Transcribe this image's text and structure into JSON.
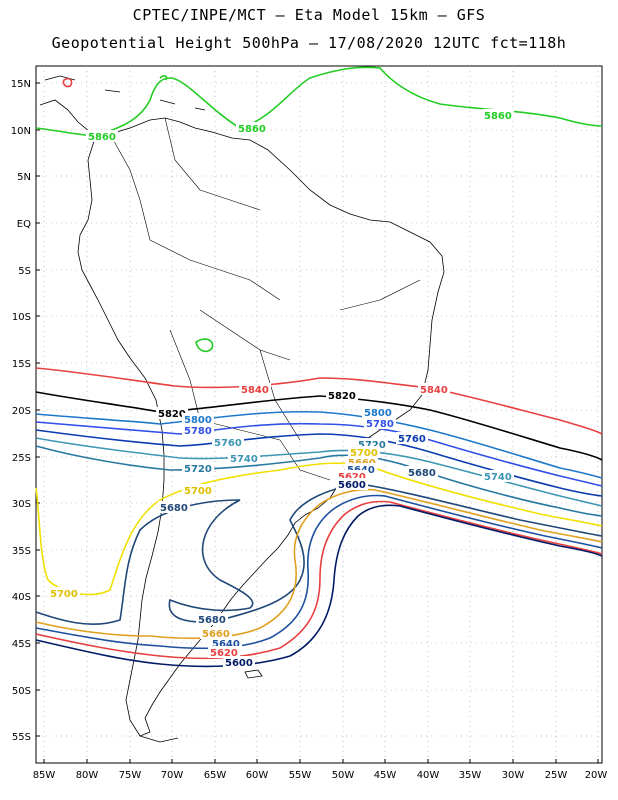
{
  "title": {
    "line1": "CPTEC/INPE/MCT –  Eta Model 15km – GFS",
    "line2": "Geopotential Height 500hPa – 17/08/2020 12UTC fct=118h"
  },
  "axes": {
    "lat_labels": [
      "15N",
      "10N",
      "5N",
      "EQ",
      "5S",
      "10S",
      "15S",
      "20S",
      "25S",
      "30S",
      "35S",
      "40S",
      "45S",
      "50S",
      "55S"
    ],
    "lon_labels": [
      "85W",
      "80W",
      "75W",
      "70W",
      "65W",
      "60W",
      "55W",
      "50W",
      "45W",
      "40W",
      "35W",
      "30W",
      "25W",
      "20W"
    ]
  },
  "colors": {
    "c5860": "#22cc22",
    "c5840": "#e84040",
    "c5820": "#000000",
    "c5800": "#1e78c8",
    "c5780": "#3050e8",
    "c5760": "#0a3cb0",
    "c5740": "#3c96b4",
    "c5720": "#2878a0",
    "c5700": "#f0e000",
    "c5680": "#204878",
    "c5660": "#e0a020",
    "c5640": "#1e50a0",
    "c5620": "#e84040",
    "c5600": "#001a66"
  },
  "contour_labels": [
    {
      "text": "5860",
      "color": "#22cc22"
    },
    {
      "text": "5860",
      "color": "#22cc22"
    },
    {
      "text": "5860",
      "color": "#22cc22"
    },
    {
      "text": "5840",
      "color": "#e84040"
    },
    {
      "text": "5840",
      "color": "#e84040"
    },
    {
      "text": "5820",
      "color": "#000000"
    },
    {
      "text": "5820",
      "color": "#000000"
    },
    {
      "text": "5800",
      "color": "#1e78c8"
    },
    {
      "text": "5800",
      "color": "#1e78c8"
    },
    {
      "text": "5780",
      "color": "#3050e8"
    },
    {
      "text": "5780",
      "color": "#3050e8"
    },
    {
      "text": "5760",
      "color": "#0a3cb0"
    },
    {
      "text": "5760",
      "color": "#0a3cb0"
    },
    {
      "text": "5740",
      "color": "#3c96b4"
    },
    {
      "text": "5740",
      "color": "#3c96b4"
    },
    {
      "text": "5720",
      "color": "#2878a0"
    },
    {
      "text": "5720",
      "color": "#2878a0"
    },
    {
      "text": "5700",
      "color": "#f0e000"
    },
    {
      "text": "5700",
      "color": "#f0e000"
    },
    {
      "text": "5700",
      "color": "#f0e000"
    },
    {
      "text": "5680",
      "color": "#204878"
    },
    {
      "text": "5680",
      "color": "#204878"
    },
    {
      "text": "5680",
      "color": "#204878"
    },
    {
      "text": "5660",
      "color": "#e0a020"
    },
    {
      "text": "5660",
      "color": "#e0a020"
    },
    {
      "text": "5640",
      "color": "#1e50a0"
    },
    {
      "text": "5640",
      "color": "#1e50a0"
    },
    {
      "text": "5620",
      "color": "#e84040"
    },
    {
      "text": "5620",
      "color": "#e84040"
    },
    {
      "text": "5600",
      "color": "#001a66"
    },
    {
      "text": "5600",
      "color": "#001a66"
    }
  ]
}
